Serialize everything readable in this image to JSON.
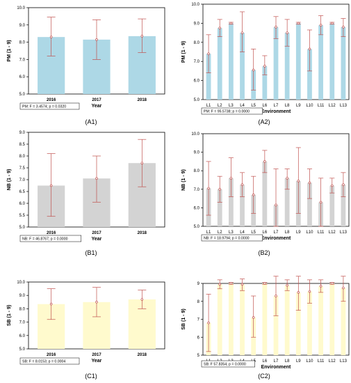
{
  "chart_data": [
    {
      "id": "A1",
      "panel_label": "(A1)",
      "type": "bar",
      "ylabel": "PM (1 - 9)",
      "xlabel": "Year",
      "ylim": [
        5,
        10
      ],
      "yticks": [
        "5.0",
        "6.0",
        "7.0",
        "8.0",
        "9.0",
        "10.0"
      ],
      "categories": [
        "2016",
        "2017",
        "2018"
      ],
      "values": [
        8.3,
        8.15,
        8.35
      ],
      "err_low": [
        7.2,
        7.0,
        7.4
      ],
      "err_high": [
        9.45,
        9.3,
        9.35
      ],
      "color": "#add8e6",
      "stat": "PM:   F = 3.4574; p = 0.0320"
    },
    {
      "id": "A2",
      "panel_label": "(A2)",
      "type": "bar",
      "ylabel": "PM (1 - 9)",
      "xlabel": "Environment",
      "ylim": [
        5,
        10
      ],
      "yticks": [
        "5.0",
        "6.0",
        "7.0",
        "8.0",
        "9.0",
        "10.0"
      ],
      "categories": [
        "L1",
        "L2",
        "L3",
        "L4",
        "L5",
        "L6",
        "L7",
        "L8",
        "L9",
        "L10",
        "L11",
        "L12",
        "L13"
      ],
      "values": [
        7.4,
        8.75,
        9.0,
        8.5,
        6.55,
        6.75,
        8.8,
        8.5,
        9.0,
        7.65,
        8.9,
        9.0,
        8.8
      ],
      "err_low": [
        6.4,
        8.3,
        8.95,
        7.5,
        5.5,
        6.3,
        8.2,
        7.8,
        8.95,
        6.5,
        8.4,
        8.95,
        8.3
      ],
      "err_high": [
        8.4,
        9.2,
        9.05,
        9.6,
        7.65,
        7.3,
        9.35,
        9.2,
        9.05,
        8.65,
        9.4,
        9.05,
        9.25
      ],
      "color": "#add8e6",
      "stat": "PM:   F = 95.5738; p = 0.0000"
    },
    {
      "id": "B1",
      "panel_label": "(B1)",
      "type": "bar",
      "ylabel": "NB (1 - 9)",
      "xlabel": "Year",
      "ylim": [
        5,
        9
      ],
      "yticks": [
        "5.0",
        "5.5",
        "6.0",
        "6.5",
        "7.0",
        "7.5",
        "8.0",
        "8.5",
        "9.0"
      ],
      "categories": [
        "2016",
        "2017",
        "2018"
      ],
      "values": [
        6.75,
        7.05,
        7.7
      ],
      "err_low": [
        5.45,
        6.05,
        6.7
      ],
      "err_high": [
        8.1,
        8.0,
        8.7
      ],
      "color": "#d3d3d3",
      "stat": "NB:   F = 46.8767; p = 0.0000"
    },
    {
      "id": "B2",
      "panel_label": "(B2)",
      "type": "bar",
      "ylabel": "NB (1 - 9)",
      "xlabel": "Environment",
      "ylim": [
        5,
        10
      ],
      "yticks": [
        "5.0",
        "6.0",
        "7.0",
        "8.0",
        "9.0",
        "10.0"
      ],
      "categories": [
        "L1",
        "L2",
        "L3",
        "L4",
        "L5",
        "L6",
        "L7",
        "L8",
        "L9",
        "L10",
        "L11",
        "L12",
        "L13"
      ],
      "values": [
        7.05,
        7.0,
        7.6,
        7.25,
        6.7,
        8.5,
        6.15,
        7.6,
        7.45,
        7.35,
        6.3,
        7.2,
        7.25
      ],
      "err_low": [
        5.6,
        6.3,
        6.6,
        6.6,
        5.7,
        7.9,
        5.0,
        7.0,
        5.7,
        6.5,
        5.0,
        6.8,
        6.6
      ],
      "err_high": [
        8.5,
        7.7,
        8.7,
        7.9,
        7.7,
        9.1,
        8.1,
        8.1,
        9.25,
        8.1,
        7.6,
        7.6,
        7.9
      ],
      "color": "#d3d3d3",
      "stat": "NB:   F = 18.9794; p = 0.0000"
    },
    {
      "id": "C1",
      "panel_label": "(C1)",
      "type": "bar",
      "ylabel": "SB (1 - 9)",
      "xlabel": "Year",
      "ylim": [
        5,
        10
      ],
      "yticks": [
        "5.0",
        "6.0",
        "7.0",
        "8.0",
        "9.0",
        "10.0"
      ],
      "categories": [
        "2016",
        "2017",
        "2018"
      ],
      "values": [
        8.35,
        8.5,
        8.7
      ],
      "err_low": [
        7.2,
        7.4,
        8.0
      ],
      "err_high": [
        9.5,
        9.6,
        9.4
      ],
      "color": "#fffacd",
      "stat": "SB:   F = 8.0153; p = 0.0004"
    },
    {
      "id": "C2",
      "panel_label": "(C2)",
      "type": "bar",
      "ylabel": "SB (1 - 9)",
      "xlabel": "Environment",
      "ylim": [
        5,
        9
      ],
      "yticks": [
        "5",
        "6",
        "7",
        "8",
        "9"
      ],
      "categories": [
        "L1",
        "L2",
        "L3",
        "L4",
        "L5",
        "L6",
        "L7",
        "L8",
        "L9",
        "L10",
        "L11",
        "L12",
        "L13"
      ],
      "values": [
        6.8,
        8.95,
        9.0,
        8.95,
        7.1,
        9.0,
        8.3,
        8.9,
        8.5,
        8.55,
        8.85,
        9.0,
        8.75
      ],
      "err_low": [
        5.2,
        8.7,
        8.95,
        8.6,
        6.0,
        8.95,
        7.2,
        8.6,
        7.5,
        7.9,
        8.5,
        8.95,
        8.0
      ],
      "err_high": [
        8.4,
        9.2,
        9.05,
        9.25,
        8.3,
        9.05,
        9.4,
        9.2,
        9.4,
        9.2,
        9.2,
        9.05,
        9.4
      ],
      "color": "#fffacd",
      "stat": "SB: F 57.8354; p = 0.0000"
    }
  ]
}
